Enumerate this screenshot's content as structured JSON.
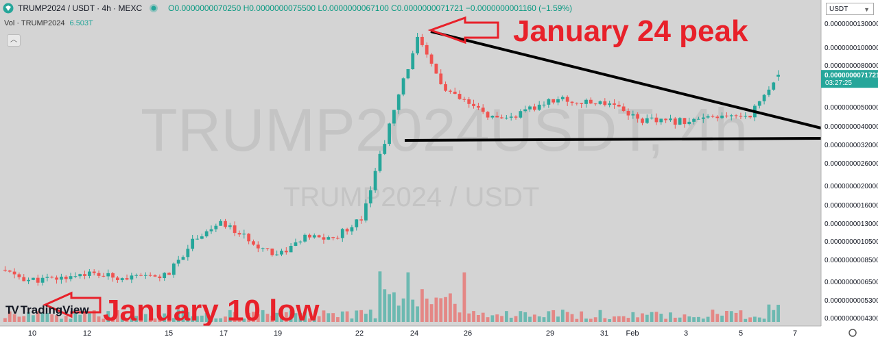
{
  "header": {
    "symbol_line": "TRUMP2024 / USDT · 4h · MEXC",
    "ohlc": "O0.0000000070250 H0.0000000075500 L0.0000000067100 C0.0000000071721 −0.0000000001160 (−1.59%)",
    "vol_label": "Vol · TRUMP2024",
    "vol_value": "6.503T",
    "currency": "USDT"
  },
  "watermark": {
    "main": "TRUMP2024USDT, 4h",
    "sub": "TRUMP2024 / USDT"
  },
  "brand": "TradingView",
  "annotations": {
    "peak": "January 24 peak",
    "low": "January 10 low"
  },
  "colors": {
    "up": "#26a69a",
    "down": "#ef5350",
    "annotation": "#e8212a",
    "background": "#d4d4d4",
    "price_badge": "#26a69a"
  },
  "chart_data": {
    "type": "candlestick",
    "scale": "log",
    "title": "TRUMP2024 / USDT · 4h · MEXC",
    "price_axis_ticks": [
      "0.0000000130000",
      "0.0000000100000",
      "0.0000000080000",
      "0.0000000050000",
      "0.0000000040000",
      "0.0000000032000",
      "0.0000000026000",
      "0.0000000020000",
      "0.0000000016000",
      "0.0000000013000",
      "0.0000000010500",
      "0.0000000008500",
      "0.0000000006500",
      "0.0000000005300",
      "0.0000000004300"
    ],
    "last_price": "0.0000000071721",
    "countdown": "03:27:25",
    "x_ticks": [
      "10",
      "12",
      "15",
      "17",
      "19",
      "22",
      "24",
      "26",
      "29",
      "31",
      "Feb",
      "3",
      "5",
      "7"
    ],
    "ohlc": {
      "open": 7.025e-09,
      "high": 7.55e-09,
      "low": 6.71e-09,
      "close": 7.1721e-09
    },
    "close_path": [
      {
        "date": "Jan 9",
        "close": 7.5e-10
      },
      {
        "date": "Jan 10",
        "close": 6.6e-10
      },
      {
        "date": "Jan 11",
        "close": 6.7e-10
      },
      {
        "date": "Jan 12",
        "close": 7.2e-10
      },
      {
        "date": "Jan 13",
        "close": 6.9e-10
      },
      {
        "date": "Jan 14",
        "close": 6.8e-10
      },
      {
        "date": "Jan 15",
        "close": 7e-10
      },
      {
        "date": "Jan 16",
        "close": 1.1e-09
      },
      {
        "date": "Jan 17",
        "close": 1.3e-09
      },
      {
        "date": "Jan 18",
        "close": 1.05e-09
      },
      {
        "date": "Jan 19",
        "close": 9e-10
      },
      {
        "date": "Jan 20",
        "close": 1.1e-09
      },
      {
        "date": "Jan 21",
        "close": 1.08e-09
      },
      {
        "date": "Jan 22",
        "close": 1.4e-09
      },
      {
        "date": "Jan 23",
        "close": 4e-09
      },
      {
        "date": "Jan 24",
        "close": 1.1e-08
      },
      {
        "date": "Jan 25",
        "close": 6e-09
      },
      {
        "date": "Jan 26",
        "close": 5e-09
      },
      {
        "date": "Jan 27",
        "close": 4.2e-09
      },
      {
        "date": "Jan 28",
        "close": 4.8e-09
      },
      {
        "date": "Jan 29",
        "close": 5.5e-09
      },
      {
        "date": "Jan 30",
        "close": 5.2e-09
      },
      {
        "date": "Jan 31",
        "close": 5.3e-09
      },
      {
        "date": "Feb 1",
        "close": 4.3e-09
      },
      {
        "date": "Feb 2",
        "close": 4.2e-09
      },
      {
        "date": "Feb 3",
        "close": 4.3e-09
      },
      {
        "date": "Feb 4",
        "close": 4.4e-09
      },
      {
        "date": "Feb 5",
        "close": 4.6e-09
      },
      {
        "date": "Feb 6",
        "close": 7.1721e-09
      }
    ]
  }
}
